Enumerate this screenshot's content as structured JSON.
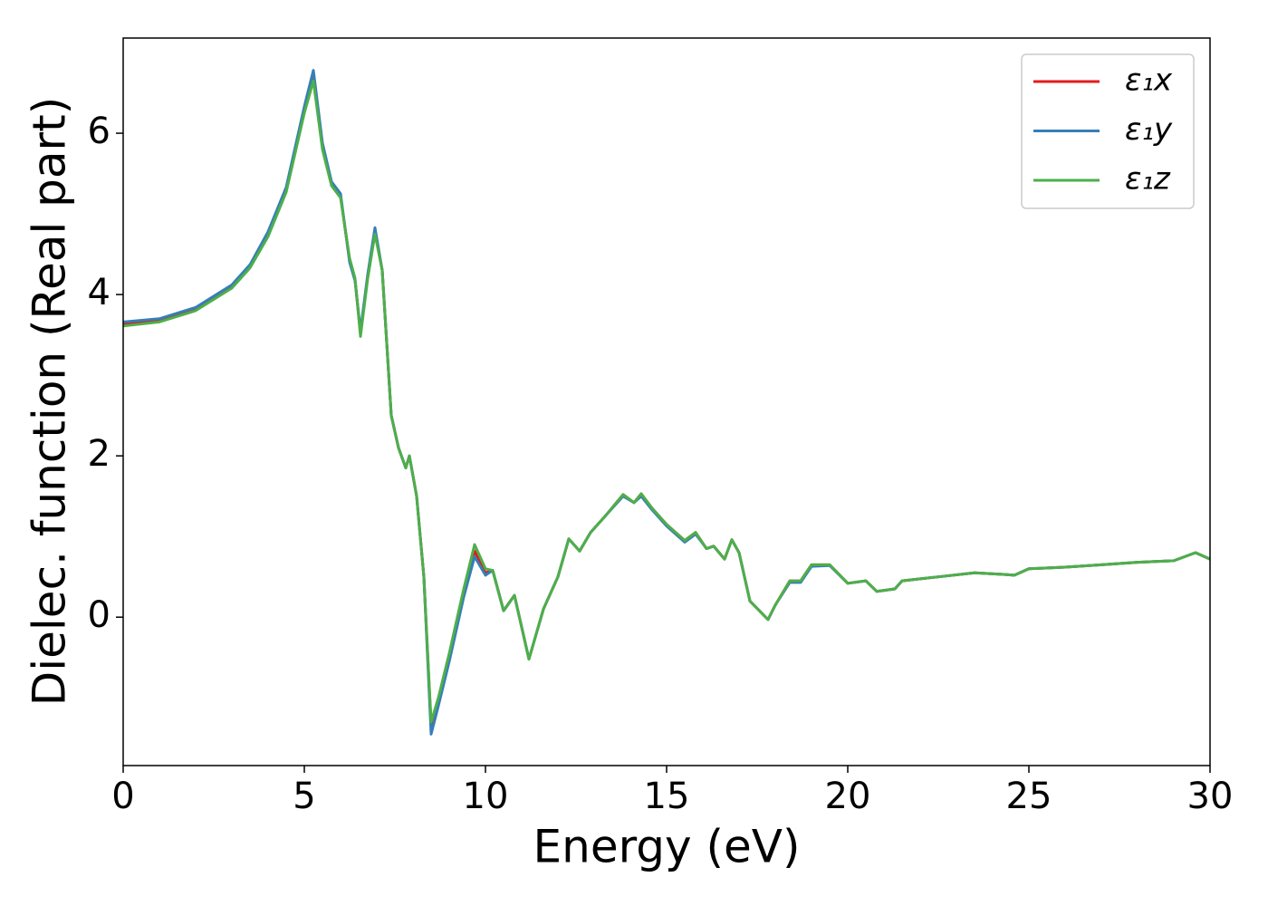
{
  "chart_data": {
    "type": "line",
    "x_label": "Energy (eV)",
    "y_label": "Dielec. function (Real part)",
    "x": [
      0,
      1,
      2,
      3,
      3.5,
      4,
      4.5,
      5,
      5.25,
      5.5,
      5.75,
      6,
      6.25,
      6.4,
      6.55,
      6.75,
      6.95,
      7.15,
      7.4,
      7.6,
      7.8,
      7.9,
      8.1,
      8.3,
      8.5,
      8.7,
      9,
      9.4,
      9.7,
      10,
      10.2,
      10.5,
      10.8,
      11.2,
      11.6,
      12,
      12.3,
      12.6,
      12.9,
      13.3,
      13.8,
      14.1,
      14.3,
      14.6,
      15,
      15.5,
      15.8,
      16.1,
      16.3,
      16.6,
      16.8,
      17,
      17.3,
      17.8,
      18,
      18.4,
      18.7,
      19,
      19.5,
      20,
      20.5,
      20.8,
      21.3,
      21.5,
      22.5,
      23.5,
      24.3,
      24.6,
      25,
      26,
      27,
      28,
      29,
      29.6,
      30
    ],
    "series": [
      {
        "name": "ε₁x",
        "color": "#e41a1c",
        "values": [
          3.64,
          3.68,
          3.82,
          4.1,
          4.35,
          4.75,
          5.3,
          6.3,
          6.72,
          5.85,
          5.38,
          5.22,
          4.42,
          4.18,
          3.52,
          4.22,
          4.8,
          4.3,
          2.5,
          2.1,
          1.85,
          2.0,
          1.5,
          0.5,
          -1.35,
          -1.05,
          -0.5,
          0.3,
          0.82,
          0.55,
          0.58,
          0.08,
          0.27,
          -0.52,
          0.1,
          0.5,
          0.97,
          0.82,
          1.05,
          1.25,
          1.52,
          1.42,
          1.53,
          1.35,
          1.15,
          0.95,
          1.05,
          0.85,
          0.88,
          0.72,
          0.96,
          0.8,
          0.2,
          -0.03,
          0.15,
          0.45,
          0.45,
          0.65,
          0.65,
          0.42,
          0.45,
          0.32,
          0.35,
          0.45,
          0.5,
          0.55,
          0.53,
          0.52,
          0.6,
          0.62,
          0.65,
          0.68,
          0.7,
          0.8,
          0.72
        ]
      },
      {
        "name": "ε₁y",
        "color": "#377eb8",
        "values": [
          3.66,
          3.7,
          3.84,
          4.12,
          4.37,
          4.78,
          5.33,
          6.33,
          6.78,
          5.88,
          5.4,
          5.25,
          4.4,
          4.17,
          3.55,
          4.25,
          4.83,
          4.3,
          2.5,
          2.1,
          1.85,
          2.0,
          1.5,
          0.5,
          -1.45,
          -1.1,
          -0.55,
          0.25,
          0.75,
          0.52,
          0.58,
          0.08,
          0.27,
          -0.52,
          0.1,
          0.5,
          0.97,
          0.82,
          1.05,
          1.25,
          1.5,
          1.42,
          1.5,
          1.33,
          1.13,
          0.93,
          1.03,
          0.85,
          0.88,
          0.72,
          0.96,
          0.8,
          0.2,
          -0.03,
          0.15,
          0.43,
          0.43,
          0.63,
          0.64,
          0.42,
          0.45,
          0.32,
          0.35,
          0.45,
          0.5,
          0.55,
          0.53,
          0.52,
          0.6,
          0.62,
          0.65,
          0.68,
          0.7,
          0.8,
          0.72
        ]
      },
      {
        "name": "ε₁z",
        "color": "#4daf4a",
        "values": [
          3.61,
          3.66,
          3.8,
          4.08,
          4.33,
          4.72,
          5.27,
          6.25,
          6.65,
          5.8,
          5.35,
          5.2,
          4.45,
          4.2,
          3.48,
          4.2,
          4.75,
          4.3,
          2.5,
          2.1,
          1.85,
          2.0,
          1.5,
          0.5,
          -1.3,
          -1.0,
          -0.45,
          0.35,
          0.9,
          0.6,
          0.58,
          0.08,
          0.27,
          -0.52,
          0.1,
          0.5,
          0.97,
          0.82,
          1.05,
          1.25,
          1.52,
          1.42,
          1.53,
          1.35,
          1.15,
          0.95,
          1.05,
          0.85,
          0.88,
          0.72,
          0.96,
          0.8,
          0.2,
          -0.03,
          0.15,
          0.45,
          0.45,
          0.65,
          0.65,
          0.42,
          0.45,
          0.32,
          0.35,
          0.45,
          0.5,
          0.55,
          0.53,
          0.52,
          0.6,
          0.62,
          0.65,
          0.68,
          0.7,
          0.8,
          0.72
        ]
      }
    ],
    "xlim": [
      0,
      30
    ],
    "xticks": [
      0,
      5,
      10,
      15,
      20,
      25,
      30
    ],
    "ylim": [
      -1.84,
      7.18
    ],
    "yticks": [
      0,
      2,
      4,
      6
    ],
    "grid": false,
    "legend": "upper right"
  }
}
